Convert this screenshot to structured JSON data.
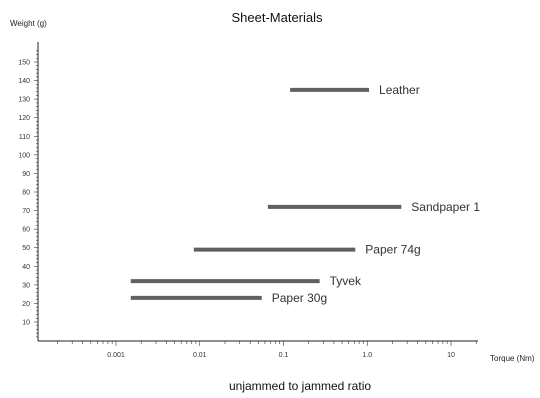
{
  "chart_data": {
    "type": "range-bar",
    "title": "Sheet-Materials",
    "xlabel": "Torque (Nm)",
    "ylabel": "Weight (g)",
    "caption": "unjammed to jammed ratio",
    "x_scale": "log",
    "xlim": [
      0.0001,
      20
    ],
    "x_ticks": [
      0.001,
      0.01,
      0.1,
      1.0,
      10
    ],
    "x_tick_labels": [
      "0.001",
      "0.01",
      "0.1",
      "1.0",
      "10"
    ],
    "ylim": [
      0,
      158
    ],
    "y_ticks": [
      10,
      20,
      30,
      40,
      50,
      60,
      70,
      80,
      90,
      100,
      110,
      120,
      130,
      140,
      150
    ],
    "y_tick_labels": [
      "10",
      "20",
      "30",
      "40",
      "50",
      "60",
      "70",
      "80",
      "90",
      "100",
      "110",
      "120",
      "130",
      "140",
      "150"
    ],
    "grid": false,
    "bar_color": "#606060",
    "bars": [
      {
        "label": "Leather",
        "weight": 135,
        "torque_min": 0.12,
        "torque_max": 1.05
      },
      {
        "label": "Sandpaper 1",
        "weight": 72,
        "torque_min": 0.065,
        "torque_max": 2.55
      },
      {
        "label": "Paper 74g",
        "weight": 49,
        "torque_min": 0.0085,
        "torque_max": 0.72
      },
      {
        "label": "Tyvek",
        "weight": 32,
        "torque_min": 0.0015,
        "torque_max": 0.27
      },
      {
        "label": "Paper 30g",
        "weight": 23,
        "torque_min": 0.0015,
        "torque_max": 0.055
      }
    ]
  }
}
